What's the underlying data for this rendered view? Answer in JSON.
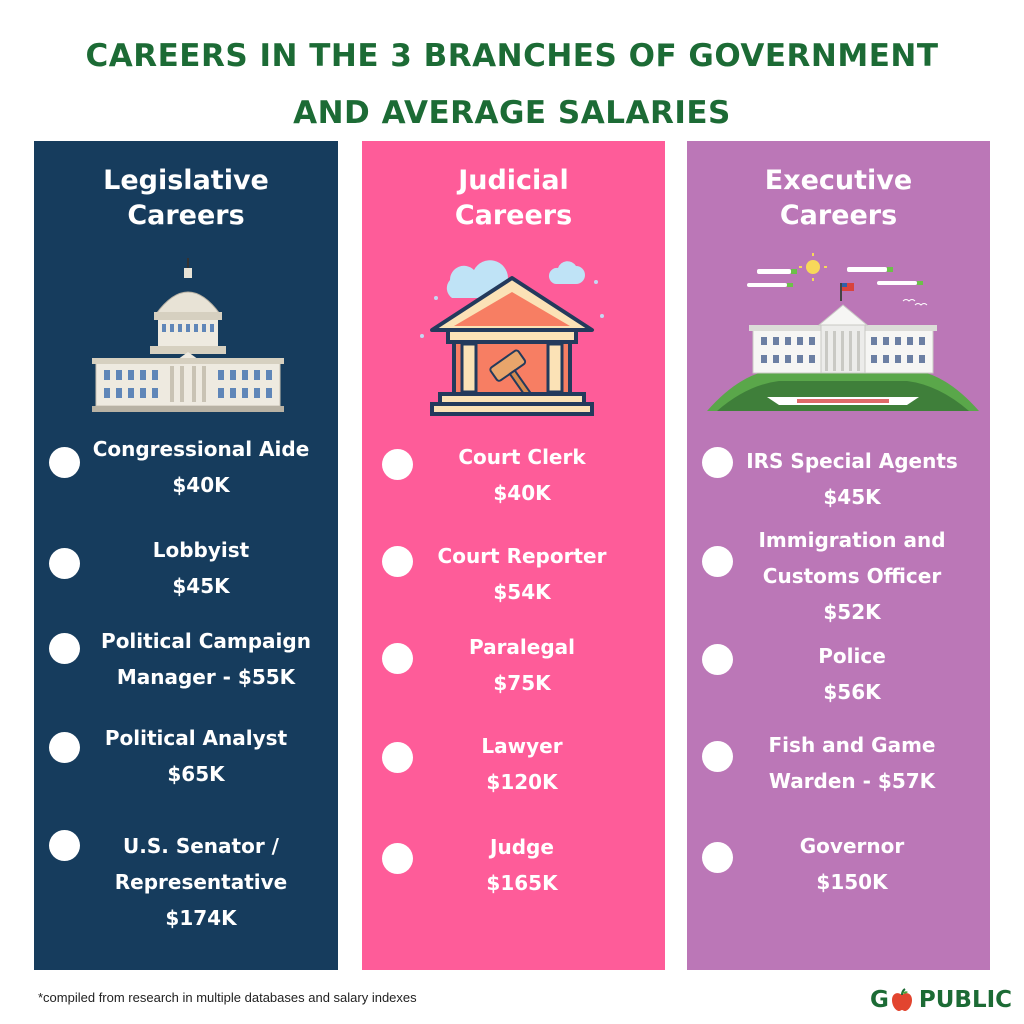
{
  "header": {
    "title_line1": "Careers in the 3 Branches of Government",
    "title_line2": "and Average Salaries"
  },
  "columns": [
    {
      "title_line1": "Legislative",
      "title_line2": "Careers",
      "color": "#163c5d",
      "illustration": "capitol-building",
      "items": [
        {
          "lines": [
            "Congressional Aide",
            "$40K"
          ]
        },
        {
          "lines": [
            "Lobbyist",
            "$45K"
          ]
        },
        {
          "lines": [
            "Political Campaign",
            "Manager - $55K"
          ]
        },
        {
          "lines": [
            "Political Analyst",
            "$65K"
          ]
        },
        {
          "lines": [
            "U.S. Senator /",
            "Representative",
            "$174K"
          ]
        }
      ]
    },
    {
      "title_line1": "Judicial",
      "title_line2": "Careers",
      "color": "#fe5c99",
      "illustration": "courthouse-gavel",
      "items": [
        {
          "lines": [
            "Court Clerk",
            "$40K"
          ]
        },
        {
          "lines": [
            "Court Reporter",
            "$54K"
          ]
        },
        {
          "lines": [
            "Paralegal",
            "$75K"
          ]
        },
        {
          "lines": [
            "Lawyer",
            "$120K"
          ]
        },
        {
          "lines": [
            "Judge",
            "$165K"
          ]
        }
      ]
    },
    {
      "title_line1": "Executive",
      "title_line2": "Careers",
      "color": "#bb77b7",
      "illustration": "white-house",
      "items": [
        {
          "lines": [
            "IRS Special Agents",
            "$45K"
          ]
        },
        {
          "lines": [
            "Immigration and",
            "Customs Officer",
            "$52K"
          ]
        },
        {
          "lines": [
            "Police",
            "$56K"
          ]
        },
        {
          "lines": [
            "Fish and Game",
            "Warden - $57K"
          ]
        },
        {
          "lines": [
            "Governor",
            "$150K"
          ]
        }
      ]
    }
  ],
  "footer": {
    "note": "*compiled from research in multiple databases and salary indexes",
    "logo_prefix": "G",
    "logo_suffix": "PUBLIC",
    "logo_icon": "apple-icon"
  }
}
